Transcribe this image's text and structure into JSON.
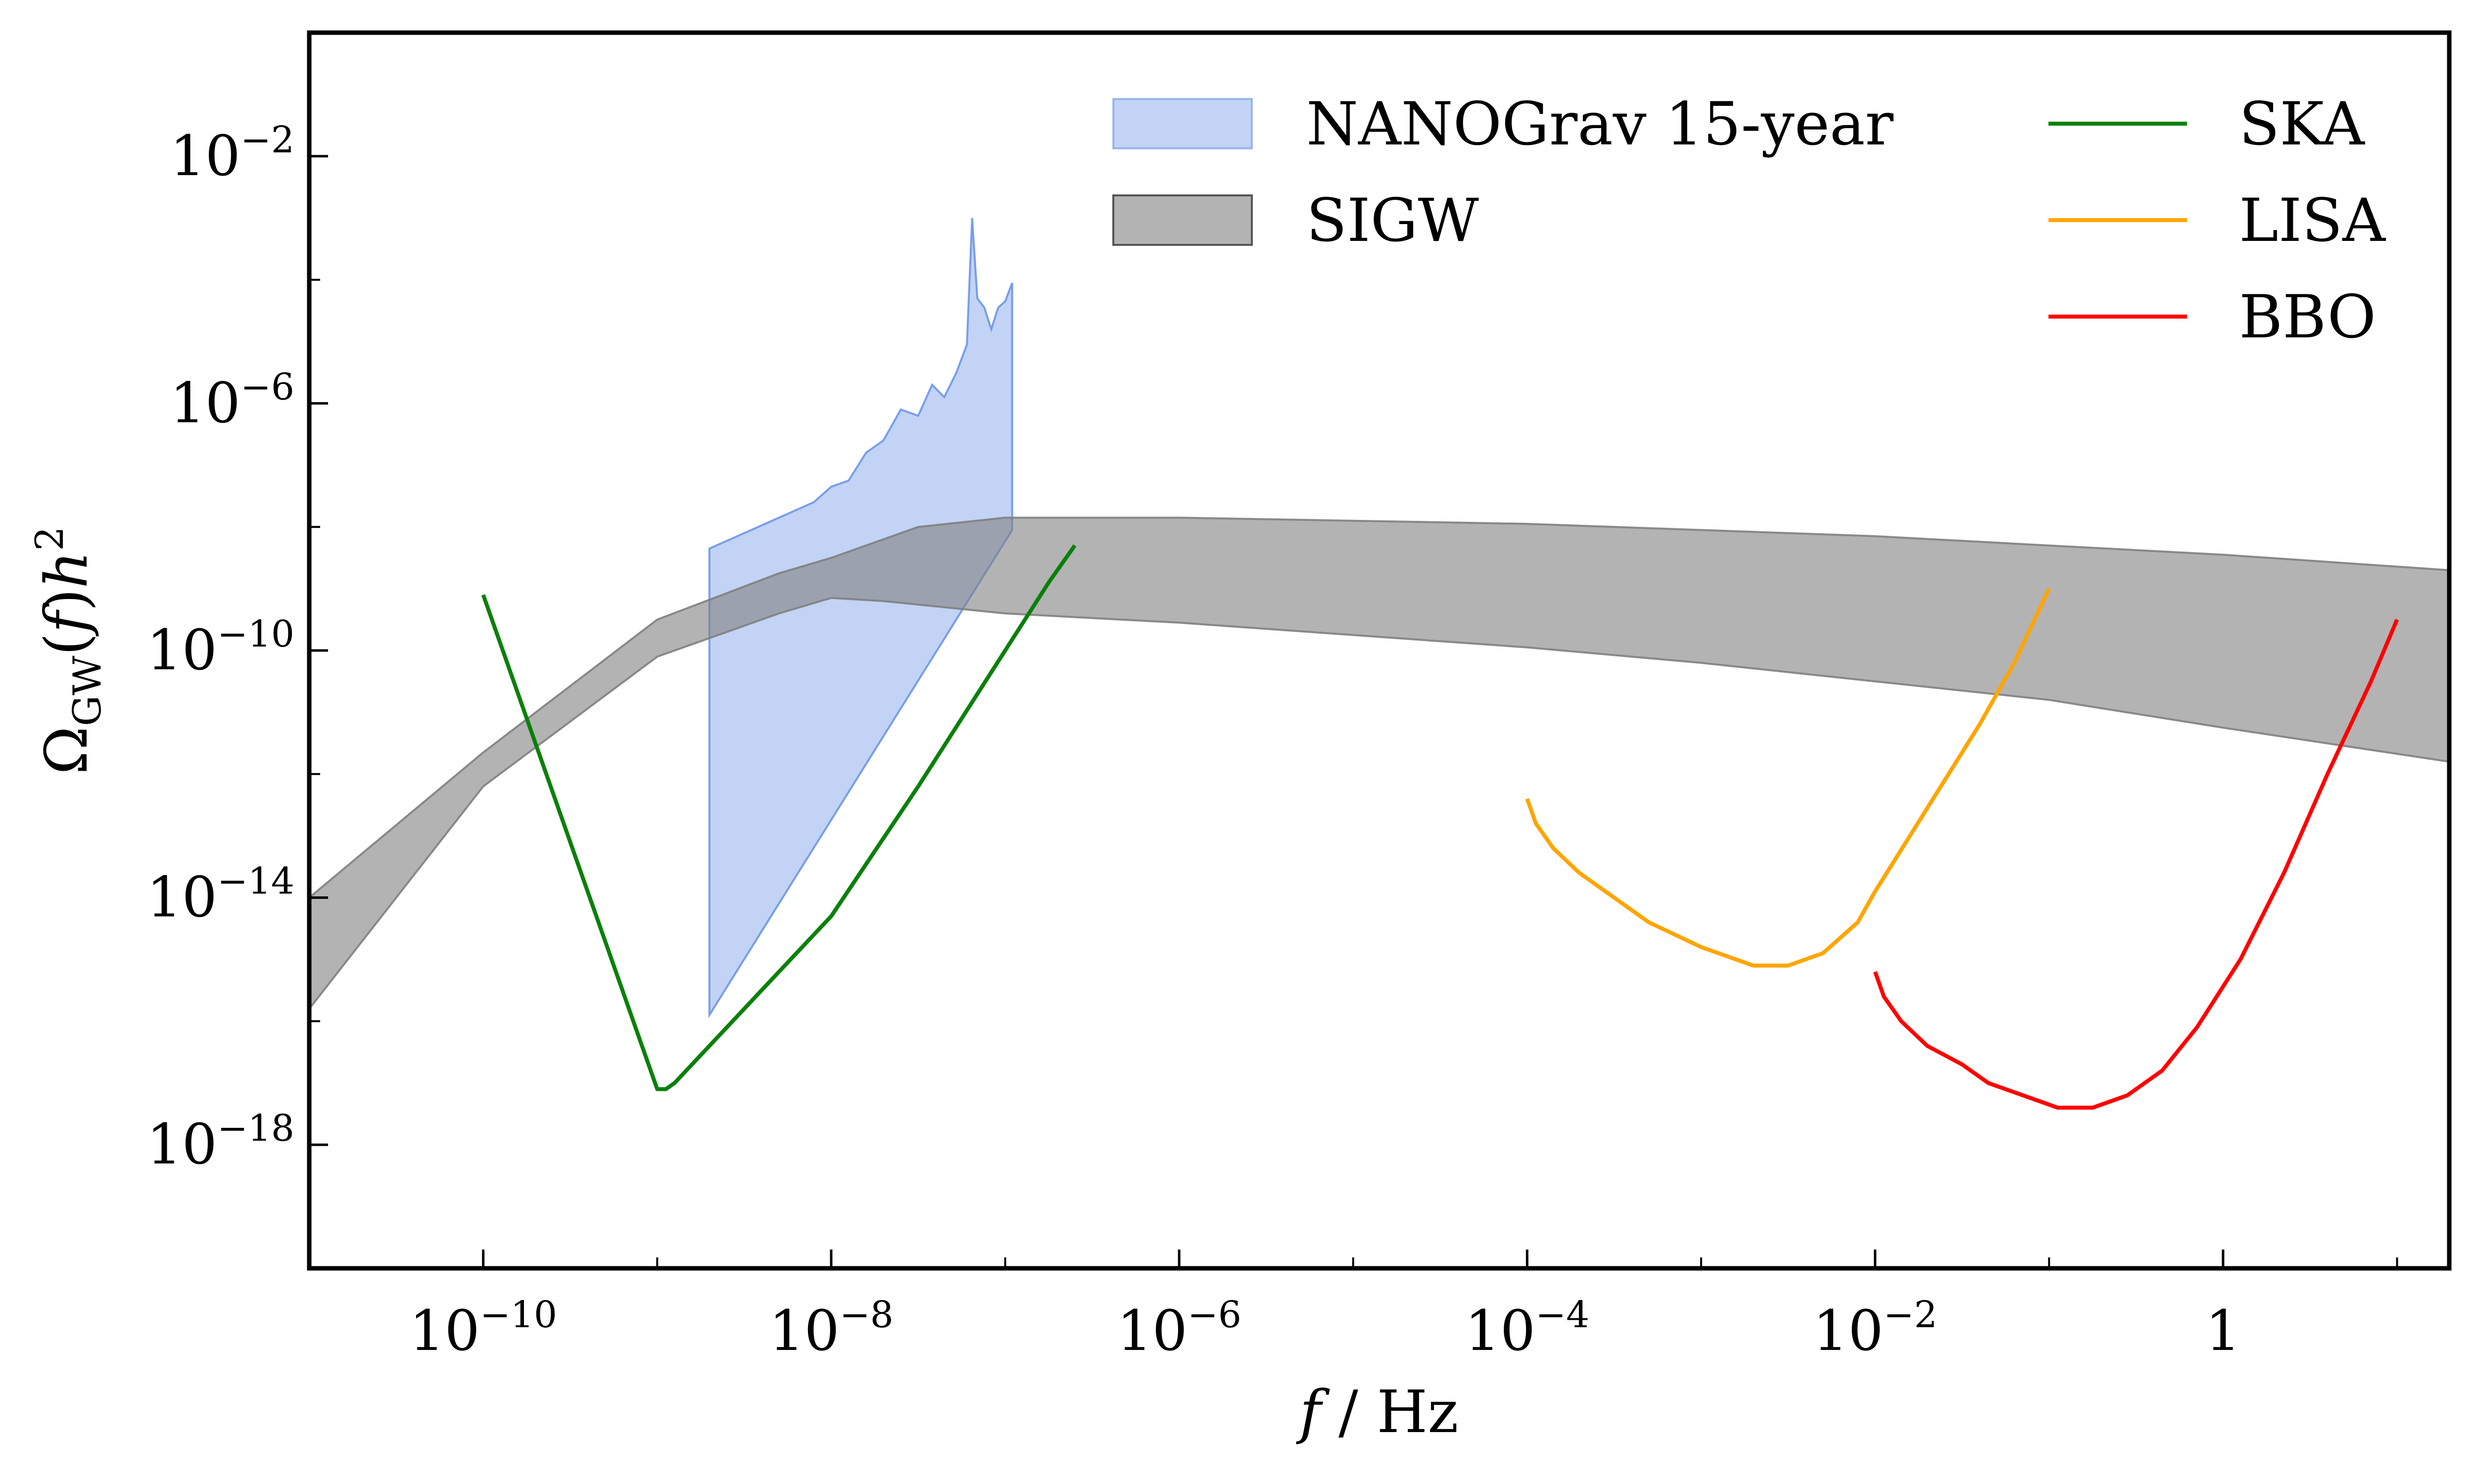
{
  "chart_data": {
    "type": "line",
    "title": "",
    "xlabel": "f / Hz",
    "ylabel": "Ω_GW(f)h²",
    "x_scale": "log10",
    "y_scale": "log10",
    "xlim_log10": [
      -11,
      1.3
    ],
    "ylim_log10": [
      -20,
      0
    ],
    "grid": false,
    "legend_position": "top-right",
    "x_ticks": [
      {
        "log10": -10,
        "label": "10",
        "exp": "−10"
      },
      {
        "log10": -8,
        "label": "10",
        "exp": "−8"
      },
      {
        "log10": -6,
        "label": "10",
        "exp": "−6"
      },
      {
        "log10": -4,
        "label": "10",
        "exp": "−4"
      },
      {
        "log10": -2,
        "label": "10",
        "exp": "−2"
      },
      {
        "log10": 0,
        "label": "1",
        "exp": ""
      }
    ],
    "x_minor_ticks_log10": [
      -9,
      -7,
      -5,
      -3,
      -1,
      1
    ],
    "y_ticks": [
      {
        "log10": -2,
        "label": "10",
        "exp": "−2"
      },
      {
        "log10": -6,
        "label": "10",
        "exp": "−6"
      },
      {
        "log10": -10,
        "label": "10",
        "exp": "−10"
      },
      {
        "log10": -14,
        "label": "10",
        "exp": "−14"
      },
      {
        "log10": -18,
        "label": "10",
        "exp": "−18"
      }
    ],
    "y_minor_ticks_log10": [
      -4,
      -8,
      -12,
      -16
    ],
    "bands": [
      {
        "name": "NANOGrav 15-year",
        "color": "#6d95e8",
        "opacity": 0.42,
        "upper": [
          [
            -8.7,
            -8.35
          ],
          [
            -8.5,
            -8.1
          ],
          [
            -8.3,
            -7.85
          ],
          [
            -8.1,
            -7.6
          ],
          [
            -8.0,
            -7.35
          ],
          [
            -7.9,
            -7.25
          ],
          [
            -7.8,
            -6.8
          ],
          [
            -7.7,
            -6.6
          ],
          [
            -7.6,
            -6.1
          ],
          [
            -7.5,
            -6.2
          ],
          [
            -7.42,
            -5.7
          ],
          [
            -7.35,
            -5.9
          ],
          [
            -7.28,
            -5.5
          ],
          [
            -7.22,
            -5.05
          ],
          [
            -7.19,
            -3.0
          ],
          [
            -7.16,
            -4.3
          ],
          [
            -7.12,
            -4.45
          ],
          [
            -7.08,
            -4.8
          ],
          [
            -7.04,
            -4.45
          ],
          [
            -7.0,
            -4.35
          ],
          [
            -6.96,
            -4.05
          ]
        ],
        "lower": [
          [
            -6.96,
            -8.05
          ],
          [
            -8.7,
            -15.9
          ]
        ]
      },
      {
        "name": "SIGW",
        "color": "#808080",
        "opacity": 0.6,
        "upper": [
          [
            -11,
            -14.0
          ],
          [
            -10,
            -11.65
          ],
          [
            -9,
            -9.5
          ],
          [
            -8.3,
            -8.75
          ],
          [
            -8.0,
            -8.5
          ],
          [
            -7.5,
            -8.0
          ],
          [
            -7.0,
            -7.85
          ],
          [
            -6,
            -7.85
          ],
          [
            -5,
            -7.9
          ],
          [
            -4,
            -7.95
          ],
          [
            -3,
            -8.05
          ],
          [
            -2,
            -8.15
          ],
          [
            -1,
            -8.3
          ],
          [
            0,
            -8.45
          ],
          [
            1.3,
            -8.7
          ]
        ],
        "lower": [
          [
            1.3,
            -11.8
          ],
          [
            0,
            -11.25
          ],
          [
            -1,
            -10.8
          ],
          [
            -2,
            -10.5
          ],
          [
            -3,
            -10.2
          ],
          [
            -4,
            -9.95
          ],
          [
            -5,
            -9.75
          ],
          [
            -6,
            -9.55
          ],
          [
            -7,
            -9.4
          ],
          [
            -7.7,
            -9.2
          ],
          [
            -8.0,
            -9.15
          ],
          [
            -8.3,
            -9.4
          ],
          [
            -9,
            -10.1
          ],
          [
            -10,
            -12.2
          ],
          [
            -11,
            -15.8
          ]
        ]
      }
    ],
    "series": [
      {
        "name": "SKA",
        "color": "#0a800a",
        "x": [
          -10,
          -9.9,
          -9.7,
          -9.5,
          -9.3,
          -9.1,
          -9.0,
          -8.95,
          -8.9,
          -8.8,
          -8.6,
          -8.4,
          -8.2,
          -8.0,
          -7.5,
          -7.0,
          -6.75,
          -6.6
        ],
        "y": [
          -9.1,
          -9.9,
          -11.5,
          -13.1,
          -14.7,
          -16.3,
          -17.1,
          -17.1,
          -17.0,
          -16.7,
          -16.1,
          -15.5,
          -14.9,
          -14.3,
          -12.2,
          -10.0,
          -8.9,
          -8.3
        ]
      },
      {
        "name": "LISA",
        "color": "#ffa500",
        "x": [
          -4,
          -3.95,
          -3.85,
          -3.7,
          -3.5,
          -3.3,
          -3.0,
          -2.7,
          -2.5,
          -2.3,
          -2.1,
          -2.0,
          -1.8,
          -1.6,
          -1.4,
          -1.2,
          -1.1,
          -1.0
        ],
        "y": [
          -12.4,
          -12.8,
          -13.2,
          -13.6,
          -14.0,
          -14.4,
          -14.8,
          -15.1,
          -15.1,
          -14.9,
          -14.4,
          -13.9,
          -13.0,
          -12.1,
          -11.2,
          -10.2,
          -9.6,
          -9.0
        ]
      },
      {
        "name": "BBO",
        "color": "#ff0000",
        "x": [
          -2,
          -1.95,
          -1.85,
          -1.7,
          -1.5,
          -1.35,
          -1.15,
          -0.95,
          -0.75,
          -0.55,
          -0.35,
          -0.15,
          0.1,
          0.35,
          0.6,
          0.85,
          1.0
        ],
        "y": [
          -15.2,
          -15.6,
          -16.0,
          -16.4,
          -16.7,
          -17.0,
          -17.2,
          -17.4,
          -17.4,
          -17.2,
          -16.8,
          -16.1,
          -15.0,
          -13.6,
          -12.0,
          -10.5,
          -9.5
        ]
      }
    ]
  }
}
